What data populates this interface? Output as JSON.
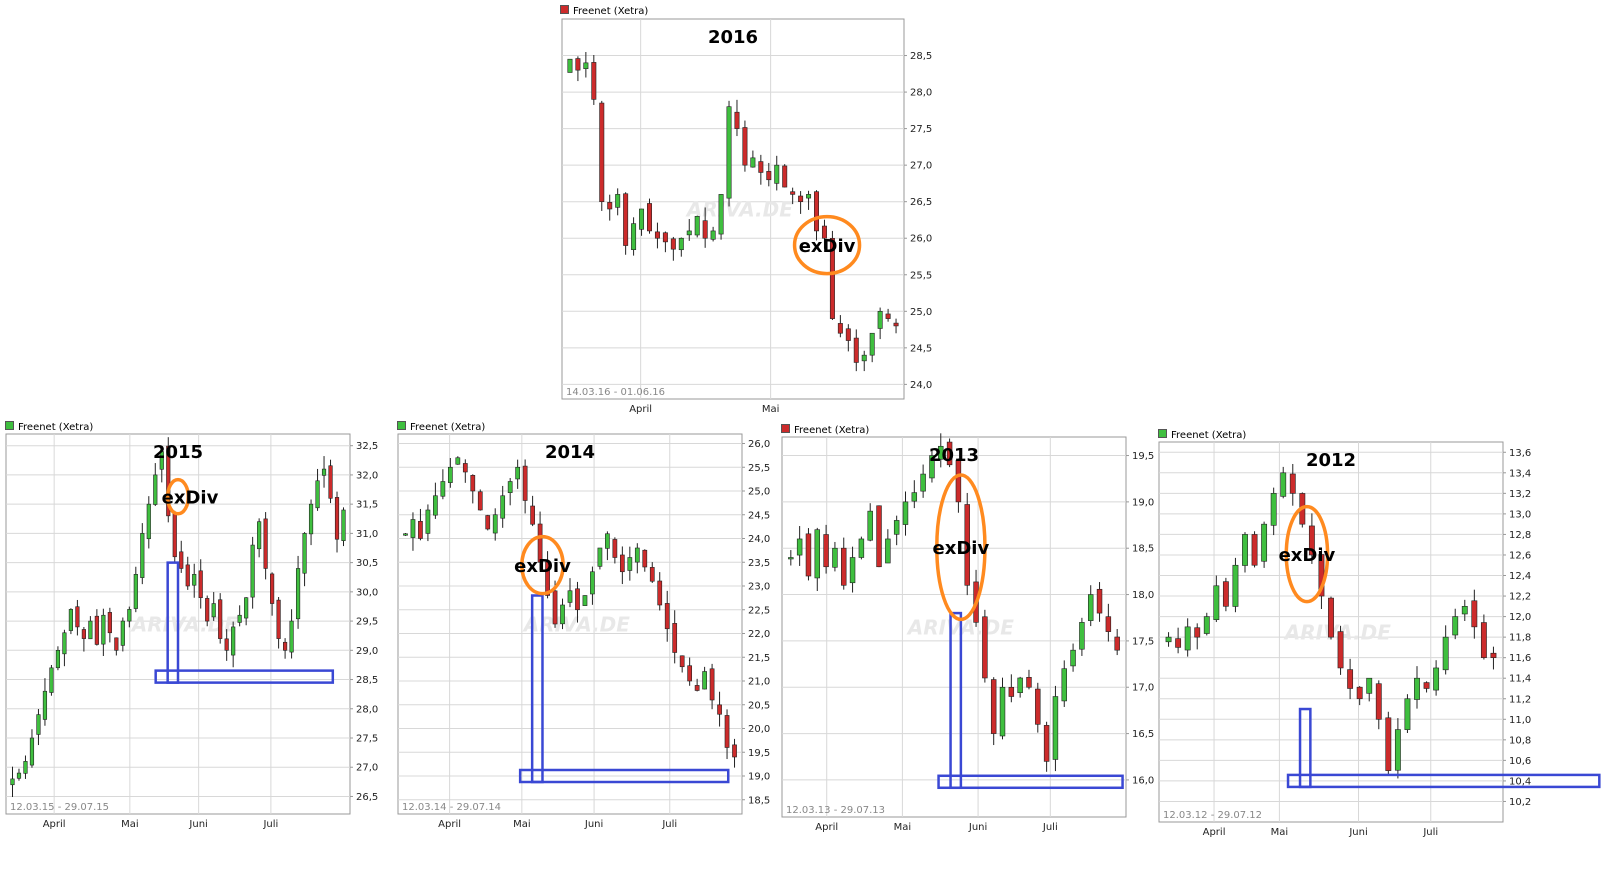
{
  "watermark": "ARIVA.DE",
  "annotation_label": "exDiv",
  "colors": {
    "up": "#3fbf3f",
    "down": "#cc2b2b",
    "ring": "#ff8a1f",
    "box": "#3a48d4",
    "grid": "#d8d8d8",
    "axis": "#999999"
  },
  "chart_data": [
    {
      "type": "candlestick",
      "id": "2016",
      "source": "Freenet (Xetra)",
      "title": "2016",
      "range": "14.03.16 - 01.06.16",
      "last_candle": "down",
      "ylim": [
        23.8,
        29.0
      ],
      "yticks": [
        "24,0",
        "24,5",
        "25,0",
        "25,5",
        "26,0",
        "26,5",
        "27,0",
        "27,5",
        "28,0",
        "28,5"
      ],
      "months": [
        {
          "label": "April",
          "frac": 0.23
        },
        {
          "label": "Mai",
          "frac": 0.61
        }
      ],
      "closes": [
        28.45,
        28.3,
        28.4,
        27.9,
        26.5,
        26.4,
        26.6,
        25.9,
        26.2,
        26.4,
        26.1,
        26.0,
        25.95,
        25.85,
        26.0,
        26.1,
        26.3,
        26.0,
        26.1,
        26.6,
        27.8,
        27.5,
        27.0,
        27.1,
        26.9,
        26.8,
        27.0,
        26.7,
        26.6,
        26.5,
        26.6,
        26.1,
        26.0,
        24.9,
        24.7,
        24.6,
        24.3,
        24.4,
        24.7,
        25.0,
        24.9,
        24.8
      ],
      "exdiv_index": 33,
      "ring": [
        0.68,
        0.52,
        0.87,
        0.67
      ],
      "box": null
    },
    {
      "type": "candlestick",
      "id": "2015",
      "source": "Freenet (Xetra)",
      "title": "2015",
      "range": "12.03.15 - 29.07.15",
      "last_candle": "up",
      "ylim": [
        26.2,
        32.7
      ],
      "yticks": [
        "26,5",
        "27,0",
        "27,5",
        "28,0",
        "28,5",
        "29,0",
        "29,5",
        "30,0",
        "30,5",
        "31,0",
        "31,5",
        "32,0",
        "32,5"
      ],
      "months": [
        {
          "label": "April",
          "frac": 0.14
        },
        {
          "label": "Mai",
          "frac": 0.36
        },
        {
          "label": "Juni",
          "frac": 0.56
        },
        {
          "label": "Juli",
          "frac": 0.77
        }
      ],
      "closes": [
        26.8,
        26.9,
        27.1,
        27.5,
        27.9,
        28.3,
        28.7,
        29.0,
        29.3,
        29.7,
        29.4,
        29.2,
        29.5,
        29.1,
        29.6,
        29.3,
        29.0,
        29.5,
        29.7,
        30.3,
        31.0,
        31.5,
        32.0,
        32.4,
        31.3,
        30.6,
        30.4,
        30.1,
        30.3,
        29.9,
        29.5,
        29.8,
        29.2,
        29.0,
        29.4,
        29.6,
        29.9,
        30.8,
        31.2,
        30.4,
        29.8,
        29.2,
        29.0,
        29.5,
        30.4,
        31.0,
        31.5,
        31.9,
        32.1,
        31.6,
        30.9,
        31.4
      ],
      "exdiv_index": 25,
      "ring": [
        0.47,
        0.12,
        0.53,
        0.21
      ],
      "box": {
        "col": [
          0.47,
          0.5
        ],
        "ytop": 30.5,
        "ylevel": 28.55,
        "end": 0.95
      }
    },
    {
      "type": "candlestick",
      "id": "2014",
      "source": "Freenet (Xetra)",
      "title": "2014",
      "range": "12.03.14 - 29.07.14",
      "last_candle": "up",
      "ylim": [
        18.2,
        26.2
      ],
      "yticks": [
        "18,5",
        "19,0",
        "19,5",
        "20,0",
        "20,5",
        "21,0",
        "21,5",
        "22,0",
        "22,5",
        "23,0",
        "23,5",
        "24,0",
        "24,5",
        "25,0",
        "25,5",
        "26,0"
      ],
      "months": [
        {
          "label": "April",
          "frac": 0.15
        },
        {
          "label": "Mai",
          "frac": 0.36
        },
        {
          "label": "Juni",
          "frac": 0.57
        },
        {
          "label": "Juli",
          "frac": 0.79
        }
      ],
      "closes": [
        24.1,
        24.4,
        24.0,
        24.6,
        24.9,
        25.2,
        25.5,
        25.7,
        25.4,
        25.0,
        24.6,
        24.2,
        24.5,
        24.9,
        25.2,
        25.5,
        24.8,
        24.3,
        23.5,
        22.8,
        22.2,
        22.6,
        22.9,
        22.5,
        22.8,
        23.3,
        23.8,
        24.1,
        23.6,
        23.3,
        23.6,
        23.8,
        23.4,
        23.1,
        22.6,
        22.1,
        21.6,
        21.3,
        21.0,
        20.8,
        21.2,
        20.6,
        20.3,
        19.6,
        19.4
      ],
      "exdiv_index": 16,
      "ring": [
        0.36,
        0.27,
        0.48,
        0.42
      ],
      "box": {
        "col": [
          0.39,
          0.42
        ],
        "ytop": 22.8,
        "ylevel": 19.0,
        "end": 0.96
      }
    },
    {
      "type": "candlestick",
      "id": "2013",
      "source": "Freenet (Xetra)",
      "title": "2013",
      "range": "12.03.13 - 29.07.13",
      "last_candle": "down",
      "ylim": [
        15.6,
        19.7
      ],
      "yticks": [
        "16,0",
        "16,5",
        "17,0",
        "17,5",
        "18,0",
        "18,5",
        "19,0",
        "19,5"
      ],
      "months": [
        {
          "label": "April",
          "frac": 0.13
        },
        {
          "label": "Mai",
          "frac": 0.35
        },
        {
          "label": "Juni",
          "frac": 0.57
        },
        {
          "label": "Juli",
          "frac": 0.78
        }
      ],
      "closes": [
        18.4,
        18.6,
        18.2,
        18.7,
        18.3,
        18.5,
        18.1,
        18.4,
        18.6,
        18.9,
        18.3,
        18.6,
        18.8,
        19.0,
        19.1,
        19.3,
        19.5,
        19.6,
        19.4,
        19.0,
        18.1,
        17.7,
        17.1,
        16.5,
        17.0,
        16.9,
        17.1,
        17.0,
        16.6,
        16.2,
        16.9,
        17.2,
        17.4,
        17.7,
        18.0,
        17.8,
        17.6,
        17.4
      ],
      "exdiv_index": 20,
      "ring": [
        0.45,
        0.1,
        0.59,
        0.48
      ],
      "box": {
        "col": [
          0.49,
          0.52
        ],
        "ytop": 17.8,
        "ylevel": 15.98,
        "end": 0.99
      }
    },
    {
      "type": "candlestick",
      "id": "2012",
      "source": "Freenet (Xetra)",
      "title": "2012",
      "range": "12.03.12 - 29.07.12",
      "last_candle": "up",
      "ylim": [
        10.0,
        13.7
      ],
      "yticks": [
        "10,2",
        "10,4",
        "10,6",
        "10,8",
        "11,0",
        "11,2",
        "11,4",
        "11,6",
        "11,8",
        "12,0",
        "12,2",
        "12,4",
        "12,6",
        "12,8",
        "13,0",
        "13,2",
        "13,4",
        "13,6"
      ],
      "months": [
        {
          "label": "April",
          "frac": 0.16
        },
        {
          "label": "Mai",
          "frac": 0.35
        },
        {
          "label": "Juni",
          "frac": 0.58
        },
        {
          "label": "Juli",
          "frac": 0.79
        }
      ],
      "closes": [
        11.8,
        11.7,
        11.9,
        11.8,
        12.0,
        12.3,
        12.1,
        12.5,
        12.8,
        12.5,
        12.9,
        13.2,
        13.4,
        13.2,
        12.9,
        12.6,
        12.2,
        11.8,
        11.5,
        11.3,
        11.2,
        11.4,
        11.0,
        10.5,
        10.9,
        11.2,
        11.4,
        11.3,
        11.5,
        11.8,
        12.0,
        12.1,
        11.9,
        11.6,
        11.6
      ],
      "exdiv_index": 18,
      "ring": [
        0.37,
        0.17,
        0.49,
        0.42
      ],
      "box": {
        "col": [
          0.41,
          0.44
        ],
        "ytop": 11.1,
        "ylevel": 10.4,
        "end": 1.28
      }
    }
  ]
}
